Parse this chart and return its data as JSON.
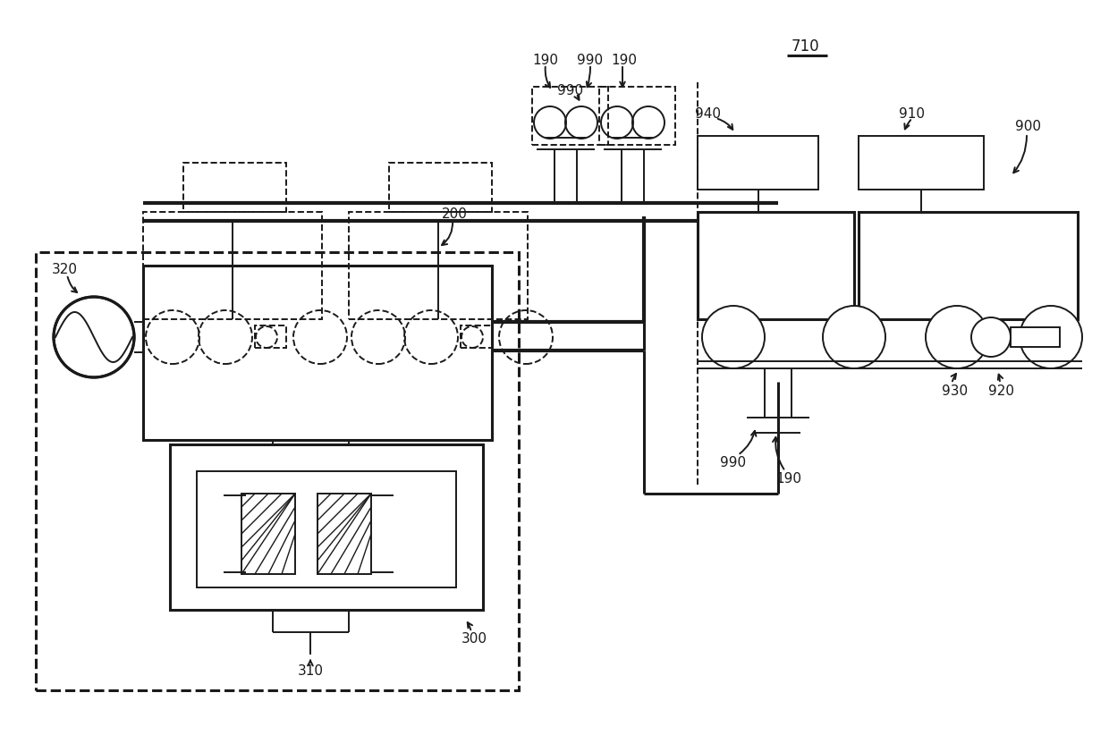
{
  "lc": "#1a1a1a",
  "lw": 1.4,
  "lw2": 2.2,
  "lw3": 3.0,
  "bg": "#ffffff",
  "xlim": [
    0,
    1240
  ],
  "ylim": [
    0,
    822
  ]
}
